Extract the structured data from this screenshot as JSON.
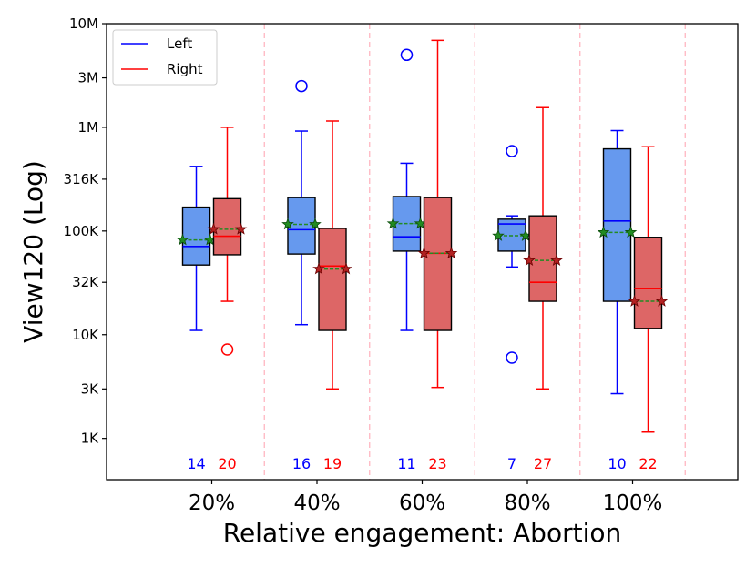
{
  "chart_data": {
    "type": "box",
    "title": "",
    "xlabel": "Relative engagement: Abortion",
    "ylabel": "View120 (Log)",
    "yscale": "log",
    "ylim": [
      400,
      10000000
    ],
    "yticks": [
      {
        "value": 1000,
        "label": "1K"
      },
      {
        "value": 3000,
        "label": "3K"
      },
      {
        "value": 10000,
        "label": "10K"
      },
      {
        "value": 32000,
        "label": "32K"
      },
      {
        "value": 100000,
        "label": "100K"
      },
      {
        "value": 316000,
        "label": "316K"
      },
      {
        "value": 1000000,
        "label": "1M"
      },
      {
        "value": 3000000,
        "label": "3M"
      },
      {
        "value": 10000000,
        "label": "10M"
      }
    ],
    "categories": [
      "20%",
      "40%",
      "60%",
      "80%",
      "100%"
    ],
    "legend": {
      "position": "top-left",
      "entries": [
        "Left",
        "Right"
      ]
    },
    "colors": {
      "left_line": "#0000ff",
      "left_fill": "#6699ee",
      "right_line": "#ff0000",
      "right_fill": "#dd6666",
      "mean": "#228b22",
      "divider": "#ffb6c1"
    },
    "series": [
      {
        "name": "Left",
        "counts": [
          14,
          16,
          11,
          7,
          10
        ],
        "boxes": [
          {
            "whisker_low": 11000,
            "q1": 47000,
            "median": 71000,
            "q3": 170000,
            "whisker_high": 420000,
            "mean": 82000,
            "outliers": []
          },
          {
            "whisker_low": 12500,
            "q1": 60000,
            "median": 103000,
            "q3": 210000,
            "whisker_high": 920000,
            "mean": 116000,
            "outliers": [
              2500000
            ]
          },
          {
            "whisker_low": 11000,
            "q1": 64000,
            "median": 88000,
            "q3": 215000,
            "whisker_high": 450000,
            "mean": 118000,
            "outliers": [
              5000000
            ]
          },
          {
            "whisker_low": 45000,
            "q1": 64000,
            "median": 117000,
            "q3": 130000,
            "whisker_high": 140000,
            "mean": 90000,
            "outliers": [
              590000,
              6000
            ]
          },
          {
            "whisker_low": 2700,
            "q1": 21000,
            "median": 125000,
            "q3": 620000,
            "whisker_high": 930000,
            "mean": 97000,
            "outliers": []
          }
        ]
      },
      {
        "name": "Right",
        "counts": [
          20,
          19,
          23,
          27,
          22
        ],
        "boxes": [
          {
            "whisker_low": 21000,
            "q1": 59000,
            "median": 89000,
            "q3": 205000,
            "whisker_high": 1000000,
            "mean": 104000,
            "outliers": [
              7200
            ]
          },
          {
            "whisker_low": 3000,
            "q1": 11000,
            "median": 46000,
            "q3": 106000,
            "whisker_high": 1150000,
            "mean": 43000,
            "outliers": []
          },
          {
            "whisker_low": 3100,
            "q1": 11000,
            "median": 61000,
            "q3": 210000,
            "whisker_high": 6900000,
            "mean": 61000,
            "outliers": []
          },
          {
            "whisker_low": 3000,
            "q1": 21000,
            "median": 32000,
            "q3": 140000,
            "whisker_high": 1550000,
            "mean": 52000,
            "outliers": []
          },
          {
            "whisker_low": 1150,
            "q1": 11500,
            "median": 28000,
            "q3": 87000,
            "whisker_high": 650000,
            "mean": 21000,
            "outliers": []
          }
        ]
      }
    ]
  }
}
